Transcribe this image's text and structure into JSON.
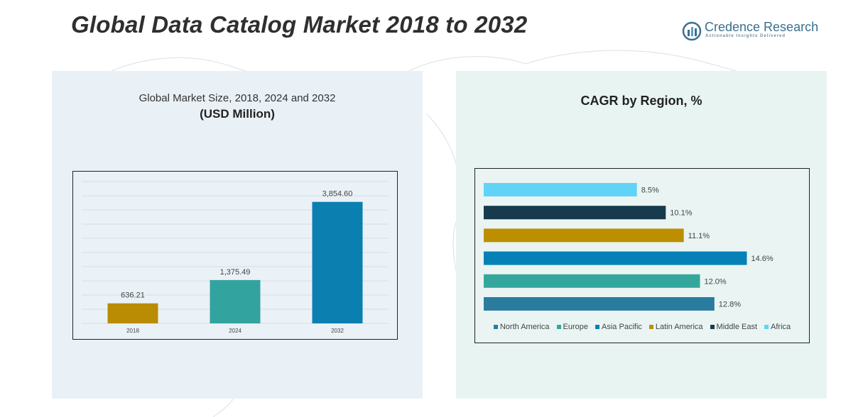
{
  "page": {
    "title": "Global Data Catalog Market 2018 to 2032"
  },
  "logo": {
    "name": "Credence Research",
    "tagline": "Actionable Insights Delivered",
    "icon": "bar-chart-icon"
  },
  "left_panel": {
    "subtitle": "Global Market Size, 2018, 2024 and 2032",
    "unit": "(USD Million)"
  },
  "right_panel": {
    "title": "CAGR by Region, %"
  },
  "chart_data": [
    {
      "type": "bar",
      "title": "Global Market Size, 2018, 2024 and 2032",
      "ylabel": "(USD Million)",
      "categories": [
        "2018",
        "2024",
        "2032"
      ],
      "values": [
        636.21,
        1375.49,
        3854.6
      ],
      "labels": [
        "636.21",
        "1,375.49",
        "3,854.60"
      ],
      "colors": [
        "#b98c04",
        "#33a3a0",
        "#0a7fb0"
      ],
      "ylim": [
        0,
        4500
      ],
      "grid": true
    },
    {
      "type": "bar",
      "orientation": "horizontal",
      "title": "CAGR by Region, %",
      "categories": [
        "Africa",
        "Middle East",
        "Latin America",
        "Asia Pacific",
        "Europe",
        "North America"
      ],
      "values": [
        8.5,
        10.1,
        11.1,
        14.6,
        12.0,
        12.8
      ],
      "labels": [
        "8.5%",
        "10.1%",
        "11.1%",
        "14.6%",
        "12.0%",
        "12.8%"
      ],
      "colors": [
        "#61d3f7",
        "#163b4c",
        "#bc8f00",
        "#0681b7",
        "#34a79c",
        "#2a7c9e"
      ],
      "xlim": [
        0,
        16
      ],
      "legend_position": "bottom",
      "legend": [
        {
          "name": "North America",
          "color": "#2a7c9e"
        },
        {
          "name": "Europe",
          "color": "#34a79c"
        },
        {
          "name": "Asia Pacific",
          "color": "#0681b7"
        },
        {
          "name": "Latin America",
          "color": "#bc8f00"
        },
        {
          "name": "Middle East",
          "color": "#163b4c"
        },
        {
          "name": "Africa",
          "color": "#61d3f7"
        }
      ]
    }
  ]
}
